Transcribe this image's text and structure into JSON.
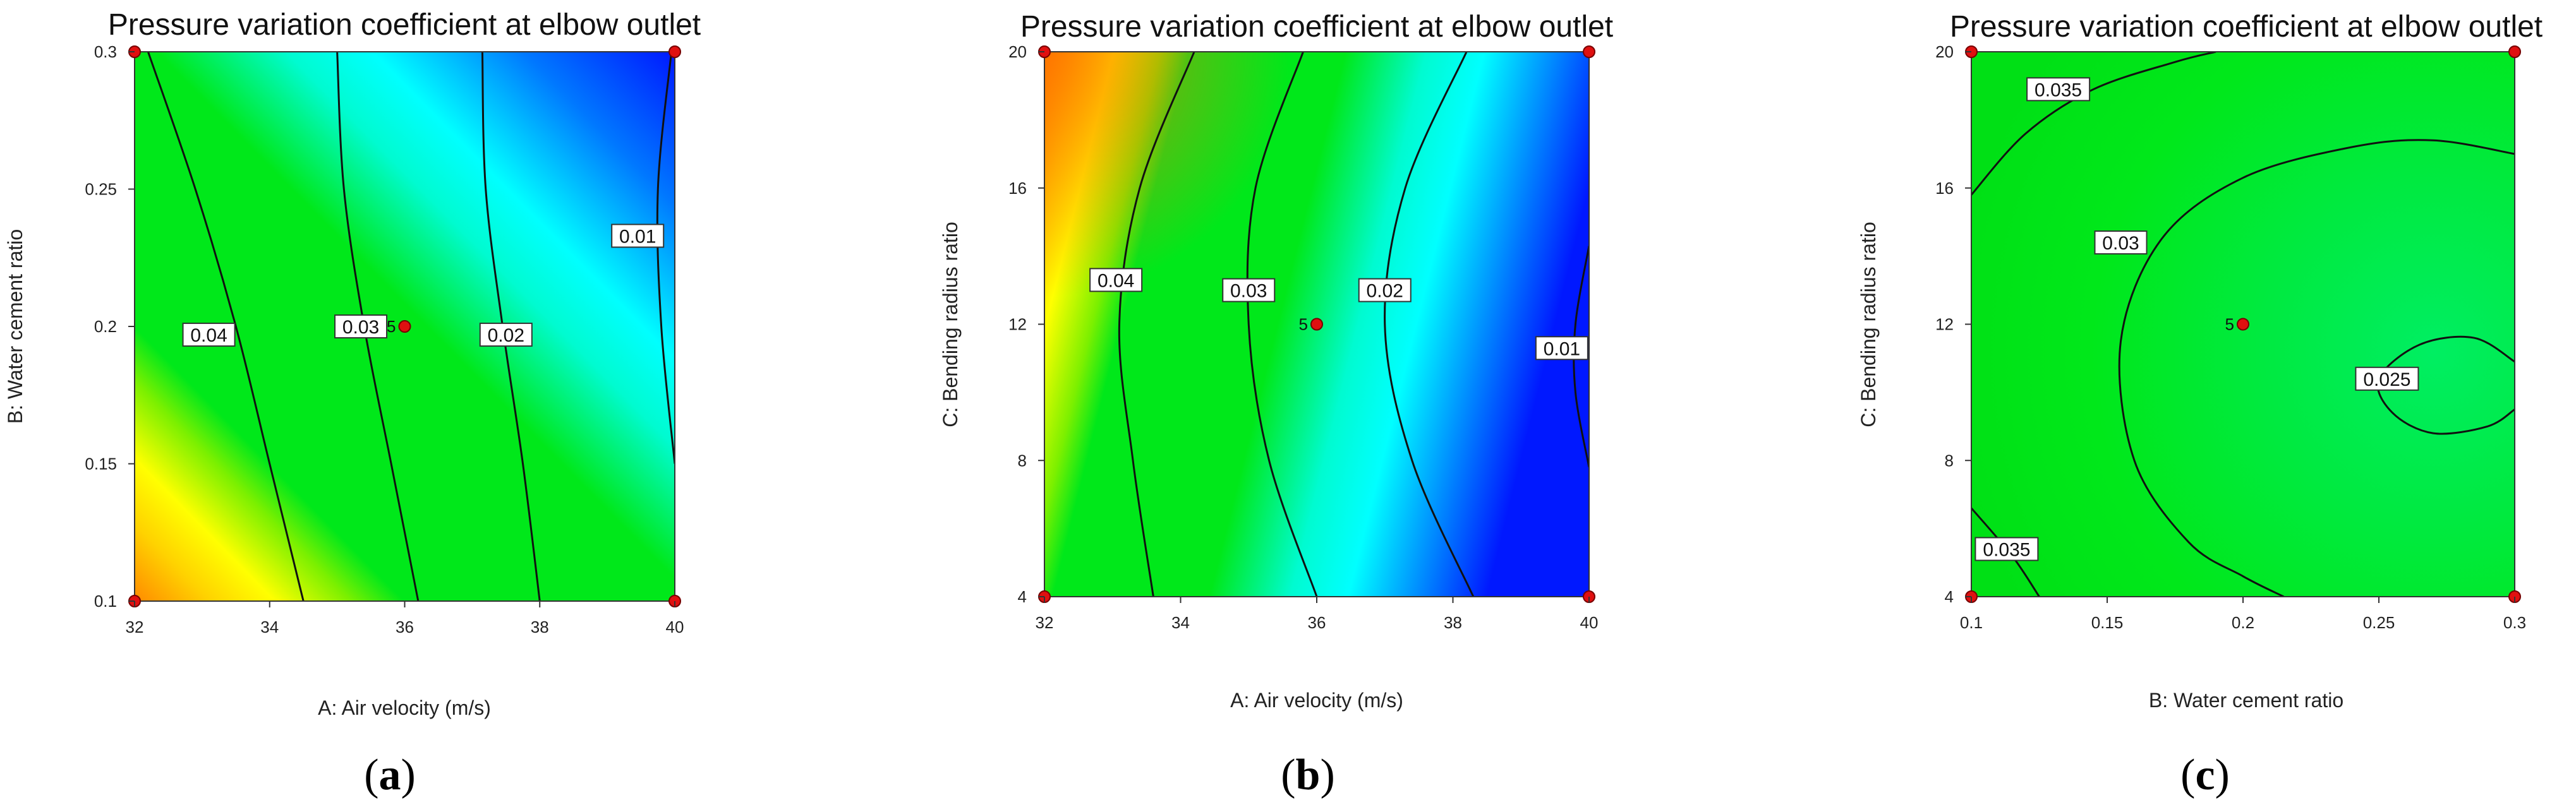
{
  "colors": {
    "blue": "#0018ff",
    "cyan": "#00ffff",
    "green": "#00e81a",
    "yellow": "#ffff00",
    "orange": "#ff8a00",
    "point": "#e01010"
  },
  "chart_data": [
    {
      "type": "contour",
      "panel_letter": "a",
      "title": "Pressure variation coefficient at elbow outlet",
      "xlabel": "A: Air velocity (m/s)",
      "ylabel": "B: Water cement ratio",
      "xlim": [
        32,
        40
      ],
      "ylim": [
        0.1,
        0.3
      ],
      "xticks": [
        "32",
        "34",
        "36",
        "38",
        "40"
      ],
      "yticks": [
        "0.1",
        "0.15",
        "0.2",
        "0.25",
        "0.3"
      ],
      "xtick_values": [
        32,
        34,
        36,
        38,
        40
      ],
      "ytick_values": [
        0.1,
        0.15,
        0.2,
        0.25,
        0.3
      ],
      "contours": [
        {
          "level": "0.04",
          "points": [
            [
              32.2,
              0.3
            ],
            [
              32.9,
              0.25
            ],
            [
              33.5,
              0.2
            ],
            [
              34.0,
              0.15
            ],
            [
              34.5,
              0.1
            ]
          ],
          "label_at": [
            33.1,
            0.197
          ]
        },
        {
          "level": "0.03",
          "points": [
            [
              35.0,
              0.3
            ],
            [
              35.1,
              0.25
            ],
            [
              35.4,
              0.2
            ],
            [
              35.8,
              0.15
            ],
            [
              36.2,
              0.1
            ]
          ],
          "label_at": [
            35.35,
            0.2
          ]
        },
        {
          "level": "0.02",
          "points": [
            [
              37.15,
              0.3
            ],
            [
              37.2,
              0.25
            ],
            [
              37.45,
              0.2
            ],
            [
              37.75,
              0.15
            ],
            [
              38.0,
              0.1
            ]
          ],
          "label_at": [
            37.5,
            0.197
          ]
        },
        {
          "level": "0.01",
          "points": [
            [
              39.95,
              0.3
            ],
            [
              39.75,
              0.25
            ],
            [
              39.8,
              0.2
            ],
            [
              40.0,
              0.15
            ]
          ],
          "label_at": [
            39.45,
            0.233
          ]
        }
      ],
      "design_points": [
        [
          32,
          0.3
        ],
        [
          40,
          0.3
        ],
        [
          32,
          0.1
        ],
        [
          40,
          0.1
        ],
        [
          36,
          0.2
        ]
      ],
      "center_label": "5"
    },
    {
      "type": "contour",
      "panel_letter": "b",
      "title": "Pressure variation coefficient at elbow outlet",
      "xlabel": "A: Air velocity (m/s)",
      "ylabel": "C: Bending radius ratio",
      "xlim": [
        32,
        40
      ],
      "ylim": [
        4,
        20
      ],
      "xticks": [
        "32",
        "34",
        "36",
        "38",
        "40"
      ],
      "yticks": [
        "4",
        "8",
        "12",
        "16",
        "20"
      ],
      "xtick_values": [
        32,
        34,
        36,
        38,
        40
      ],
      "ytick_values": [
        4,
        8,
        12,
        16,
        20
      ],
      "contours": [
        {
          "level": "0.04",
          "points": [
            [
              34.2,
              20
            ],
            [
              33.4,
              16
            ],
            [
              33.1,
              12
            ],
            [
              33.3,
              8
            ],
            [
              33.6,
              4
            ]
          ],
          "label_at": [
            33.05,
            13.3
          ]
        },
        {
          "level": "0.03",
          "points": [
            [
              35.8,
              20
            ],
            [
              35.1,
              16
            ],
            [
              35.0,
              12
            ],
            [
              35.3,
              8
            ],
            [
              36.0,
              4
            ]
          ],
          "label_at": [
            35.0,
            13.0
          ]
        },
        {
          "level": "0.02",
          "points": [
            [
              38.2,
              20
            ],
            [
              37.3,
              16
            ],
            [
              37.0,
              12
            ],
            [
              37.4,
              8
            ],
            [
              38.3,
              4
            ]
          ],
          "label_at": [
            37.0,
            13.0
          ]
        },
        {
          "level": "0.01",
          "points": [
            [
              40.0,
              14.3
            ],
            [
              39.8,
              12
            ],
            [
              39.8,
              10
            ],
            [
              40.0,
              7.8
            ]
          ],
          "label_at": [
            39.6,
            11.3
          ]
        }
      ],
      "design_points": [
        [
          32,
          20
        ],
        [
          40,
          20
        ],
        [
          32,
          4
        ],
        [
          40,
          4
        ],
        [
          36,
          12
        ]
      ],
      "center_label": "5"
    },
    {
      "type": "contour",
      "panel_letter": "c",
      "title": "Pressure variation coefficient at elbow outlet",
      "xlabel": "B: Water cement ratio",
      "ylabel": "C: Bending radius ratio",
      "xlim": [
        0.1,
        0.3
      ],
      "ylim": [
        4,
        20
      ],
      "xticks": [
        "0.1",
        "0.15",
        "0.2",
        "0.25",
        "0.3"
      ],
      "yticks": [
        "4",
        "8",
        "12",
        "16",
        "20"
      ],
      "xtick_values": [
        0.1,
        0.15,
        0.2,
        0.25,
        0.3
      ],
      "ytick_values": [
        4,
        8,
        12,
        16,
        20
      ],
      "contours": [
        {
          "level": "0.035",
          "points": [
            [
              0.1,
              15.8
            ],
            [
              0.12,
              17.6
            ],
            [
              0.145,
              18.9
            ],
            [
              0.175,
              19.7
            ],
            [
              0.19,
              20
            ]
          ],
          "label_at": [
            0.132,
            18.9
          ]
        },
        {
          "level": "0.035",
          "points": [
            [
              0.1,
              6.6
            ],
            [
              0.115,
              5.2
            ],
            [
              0.125,
              4
            ]
          ],
          "label_at": [
            0.113,
            5.4
          ]
        },
        {
          "level": "0.03",
          "points": [
            [
              0.3,
              17.0
            ],
            [
              0.27,
              17.4
            ],
            [
              0.24,
              17.2
            ],
            [
              0.2,
              16.3
            ],
            [
              0.17,
              14.5
            ],
            [
              0.155,
              11.5
            ],
            [
              0.16,
              8.0
            ],
            [
              0.18,
              5.6
            ],
            [
              0.2,
              4.6
            ],
            [
              0.215,
              4.0
            ]
          ],
          "label_at": [
            0.155,
            14.4
          ]
        },
        {
          "level": "0.025",
          "points": [
            [
              0.3,
              10.9
            ],
            [
              0.285,
              11.6
            ],
            [
              0.265,
              11.4
            ],
            [
              0.25,
              10.4
            ],
            [
              0.255,
              9.4
            ],
            [
              0.27,
              8.8
            ],
            [
              0.29,
              9.0
            ],
            [
              0.3,
              9.5
            ]
          ],
          "label_at": [
            0.253,
            10.4
          ]
        }
      ],
      "design_points": [
        [
          0.1,
          20
        ],
        [
          0.3,
          20
        ],
        [
          0.1,
          4
        ],
        [
          0.3,
          4
        ],
        [
          0.2,
          12
        ]
      ],
      "center_label": "5"
    }
  ]
}
